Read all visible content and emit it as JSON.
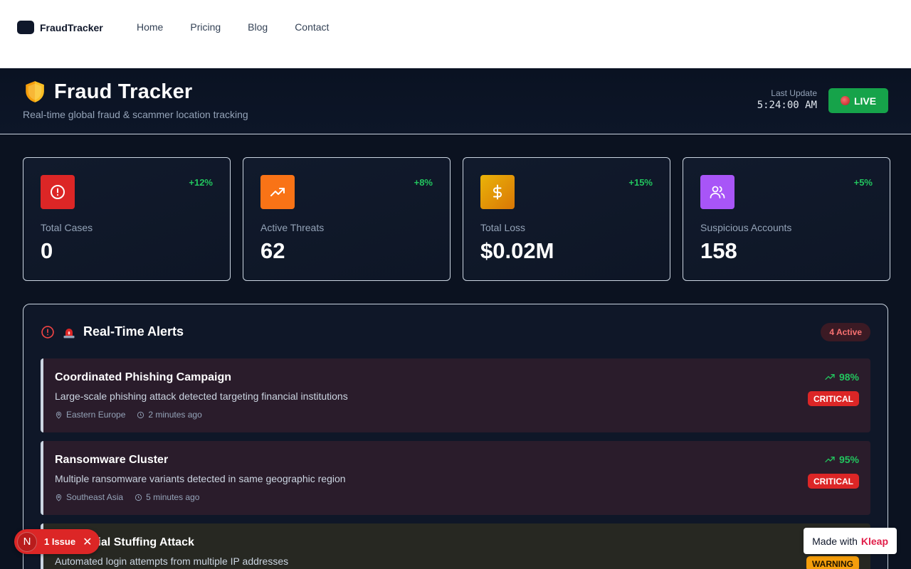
{
  "nav": {
    "brand": "FraudTracker",
    "links": [
      "Home",
      "Pricing",
      "Blog",
      "Contact"
    ]
  },
  "hero": {
    "title": "Fraud Tracker",
    "subtitle": "Real-time global fraud & scammer location tracking",
    "last_update_label": "Last Update",
    "last_update_time": "5:24:00 AM",
    "live_label": "LIVE"
  },
  "stats": [
    {
      "label": "Total Cases",
      "value": "0",
      "change": "+12%",
      "icon": "alert-circle-icon",
      "color": "#dc2626"
    },
    {
      "label": "Active Threats",
      "value": "62",
      "change": "+8%",
      "icon": "trending-up-icon",
      "color": "#f97316"
    },
    {
      "label": "Total Loss",
      "value": "$0.02M",
      "change": "+15%",
      "icon": "dollar-icon",
      "color": "#eab308"
    },
    {
      "label": "Suspicious Accounts",
      "value": "158",
      "change": "+5%",
      "icon": "users-icon",
      "color": "#a855f7"
    }
  ],
  "alerts": {
    "title": "Real-Time Alerts",
    "active_badge": "4 Active",
    "items": [
      {
        "title": "Coordinated Phishing Campaign",
        "description": "Large-scale phishing attack detected targeting financial institutions",
        "location": "Eastern Europe",
        "time": "2 minutes ago",
        "score": "98%",
        "severity": "CRITICAL"
      },
      {
        "title": "Ransomware Cluster",
        "description": "Multiple ransomware variants detected in same geographic region",
        "location": "Southeast Asia",
        "time": "5 minutes ago",
        "score": "95%",
        "severity": "CRITICAL"
      },
      {
        "title": "Credential Stuffing Attack",
        "description": "Automated login attempts from multiple IP addresses",
        "location": "",
        "time": "",
        "score": "",
        "severity": "WARNING"
      }
    ]
  },
  "widgets": {
    "issue_letter": "N",
    "issue_text": "1 Issue",
    "made_with_prefix": "Made with",
    "made_with_brand": "Kleap"
  },
  "colors": {
    "live_green": "#16a34a",
    "positive_change": "#22c55e",
    "critical": "#dc2626",
    "warning": "#f59e0b"
  }
}
